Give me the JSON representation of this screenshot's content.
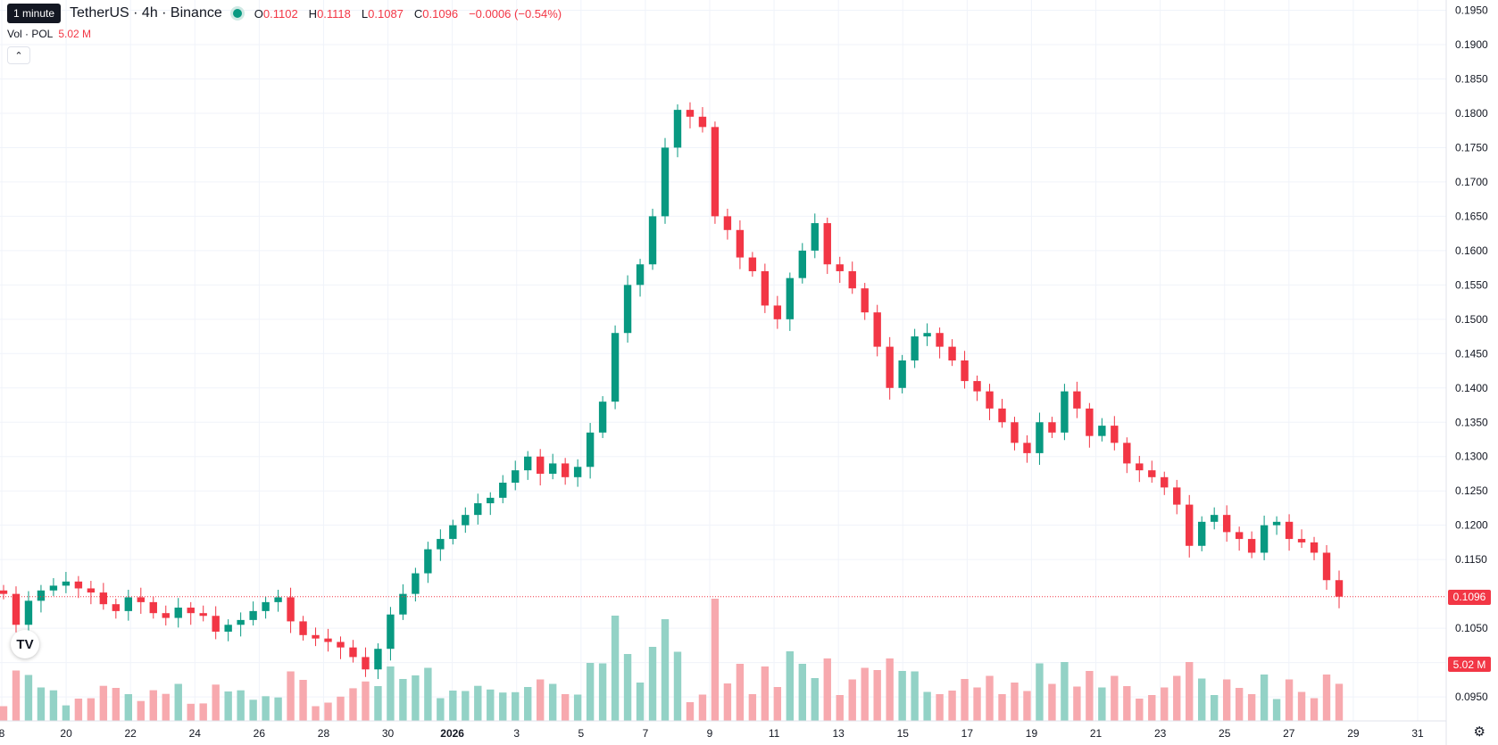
{
  "legend": {
    "symbol": "TetherUS · 4h · Binance",
    "o_label": "O",
    "o_value": "0.1102",
    "h_label": "H",
    "h_value": "0.1118",
    "l_label": "L",
    "l_value": "0.1087",
    "c_label": "C",
    "c_value": "0.1096",
    "change": "−0.0006 (−0.54%)"
  },
  "tooltip": "1 minute",
  "volume_legend": {
    "label": "Vol · POL",
    "value": "5.02 M"
  },
  "price_tag": "0.1096",
  "volume_tag": "5.02 M",
  "logo": "TV",
  "colors": {
    "up": "#089981",
    "down": "#f23645",
    "up_vol": "#93d2c6",
    "down_vol": "#f7a9ae",
    "grid": "#f0f3fa"
  },
  "icons": {
    "settings": "gear-icon",
    "collapse": "chevron-up-icon"
  },
  "chart_data": {
    "type": "candlestick",
    "interval": "4h",
    "x_ticks": [
      "8",
      "20",
      "22",
      "24",
      "26",
      "28",
      "30",
      "2026",
      "3",
      "5",
      "7",
      "9",
      "11",
      "13",
      "15",
      "17",
      "19",
      "21",
      "23",
      "25",
      "27",
      "29",
      "31"
    ],
    "y_ticks": [
      "0.1950",
      "0.1900",
      "0.1850",
      "0.1800",
      "0.1750",
      "0.1700",
      "0.1650",
      "0.1600",
      "0.1550",
      "0.1500",
      "0.1450",
      "0.1400",
      "0.1350",
      "0.1300",
      "0.1250",
      "0.1200",
      "0.1150",
      "0.1050",
      "0.1000",
      "0.0950"
    ],
    "ylim": [
      0.0915,
      0.1965
    ],
    "last_price": 0.1096,
    "closes": [
      0.11,
      0.1055,
      0.109,
      0.1105,
      0.1112,
      0.1118,
      0.1108,
      0.1102,
      0.1085,
      0.1075,
      0.1095,
      0.1088,
      0.1072,
      0.1065,
      0.108,
      0.1072,
      0.1068,
      0.1045,
      0.1055,
      0.1062,
      0.1075,
      0.1088,
      0.1095,
      0.106,
      0.104,
      0.1035,
      0.103,
      0.1022,
      0.1008,
      0.099,
      0.102,
      0.107,
      0.11,
      0.113,
      0.1165,
      0.118,
      0.12,
      0.1215,
      0.1232,
      0.124,
      0.1262,
      0.128,
      0.13,
      0.1275,
      0.129,
      0.127,
      0.1285,
      0.1335,
      0.138,
      0.148,
      0.155,
      0.158,
      0.165,
      0.175,
      0.1805,
      0.1795,
      0.178,
      0.165,
      0.163,
      0.159,
      0.157,
      0.152,
      0.15,
      0.156,
      0.16,
      0.164,
      0.158,
      0.157,
      0.1545,
      0.151,
      0.146,
      0.14,
      0.144,
      0.1475,
      0.148,
      0.146,
      0.144,
      0.141,
      0.1395,
      0.137,
      0.135,
      0.132,
      0.1305,
      0.135,
      0.1335,
      0.1395,
      0.137,
      0.133,
      0.1345,
      0.132,
      0.129,
      0.128,
      0.127,
      0.1255,
      0.123,
      0.117,
      0.1205,
      0.1215,
      0.119,
      0.118,
      0.116,
      0.12,
      0.1205,
      0.118,
      0.1175,
      0.116,
      0.112,
      0.1096
    ]
  }
}
